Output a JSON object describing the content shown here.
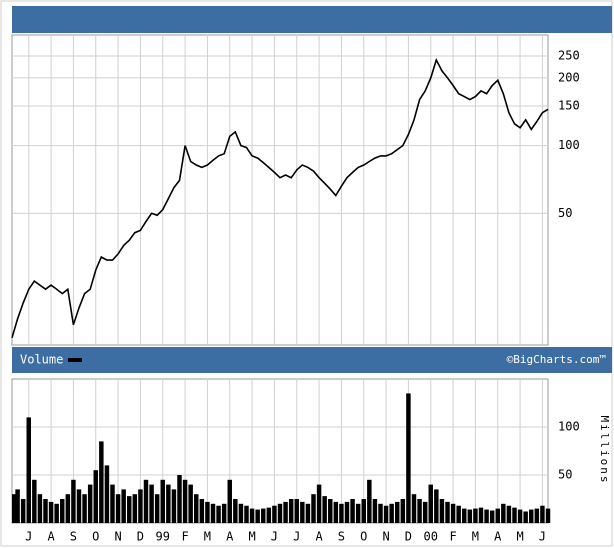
{
  "chart_data": [
    {
      "type": "line",
      "log_scale": true,
      "grid": true,
      "color": "#000000",
      "ylim": [
        13,
        310
      ],
      "yticks": [
        50,
        100,
        150,
        200,
        250
      ],
      "values": [
        14,
        17,
        20,
        23,
        25,
        24,
        23,
        24,
        23,
        22,
        23,
        16,
        19,
        22,
        23,
        28,
        32,
        31,
        31,
        33,
        36,
        38,
        41,
        42,
        46,
        50,
        49,
        52,
        58,
        65,
        70,
        100,
        85,
        82,
        80,
        82,
        86,
        90,
        92,
        110,
        115,
        100,
        98,
        90,
        88,
        84,
        80,
        76,
        72,
        74,
        72,
        78,
        82,
        80,
        77,
        72,
        68,
        64,
        60,
        66,
        72,
        76,
        80,
        82,
        85,
        88,
        90,
        90,
        92,
        96,
        100,
        112,
        130,
        160,
        175,
        200,
        240,
        215,
        200,
        185,
        170,
        165,
        160,
        165,
        175,
        170,
        185,
        195,
        170,
        140,
        125,
        120,
        130,
        118,
        128,
        140,
        145
      ]
    },
    {
      "type": "bar",
      "title": "Volume",
      "annotation": "©BigCharts.com™",
      "ylabel": "Millions",
      "grid": true,
      "color": "#000000",
      "ylim": [
        0,
        150
      ],
      "yticks": [
        50,
        100
      ],
      "categories": [
        null,
        null,
        null,
        "J",
        null,
        null,
        null,
        "A",
        null,
        null,
        null,
        "S",
        null,
        null,
        null,
        "O",
        null,
        null,
        null,
        "N",
        null,
        null,
        null,
        "D",
        null,
        null,
        null,
        "99",
        null,
        null,
        null,
        "F",
        null,
        null,
        null,
        "M",
        null,
        null,
        null,
        "A",
        null,
        null,
        null,
        "M",
        null,
        null,
        null,
        "J",
        null,
        null,
        null,
        "J",
        null,
        null,
        null,
        "A",
        null,
        null,
        null,
        "S",
        null,
        null,
        null,
        "O",
        null,
        null,
        null,
        "N",
        null,
        null,
        null,
        "D",
        null,
        null,
        null,
        "00",
        null,
        null,
        null,
        "F",
        null,
        null,
        null,
        "M",
        null,
        null,
        null,
        "A",
        null,
        null,
        null,
        "M",
        null,
        null,
        null,
        "J",
        null
      ],
      "values": [
        30,
        35,
        25,
        110,
        45,
        30,
        25,
        22,
        20,
        25,
        30,
        45,
        35,
        30,
        40,
        55,
        85,
        60,
        40,
        30,
        35,
        28,
        30,
        35,
        45,
        40,
        30,
        45,
        40,
        35,
        50,
        45,
        40,
        30,
        25,
        22,
        20,
        18,
        20,
        45,
        25,
        20,
        18,
        15,
        14,
        15,
        16,
        18,
        20,
        22,
        25,
        25,
        22,
        20,
        30,
        40,
        28,
        25,
        22,
        20,
        22,
        25,
        20,
        25,
        45,
        25,
        20,
        18,
        20,
        22,
        25,
        135,
        30,
        25,
        22,
        40,
        35,
        25,
        22,
        20,
        18,
        15,
        14,
        15,
        16,
        14,
        13,
        15,
        20,
        18,
        16,
        14,
        12,
        14,
        15,
        18,
        15
      ]
    }
  ]
}
